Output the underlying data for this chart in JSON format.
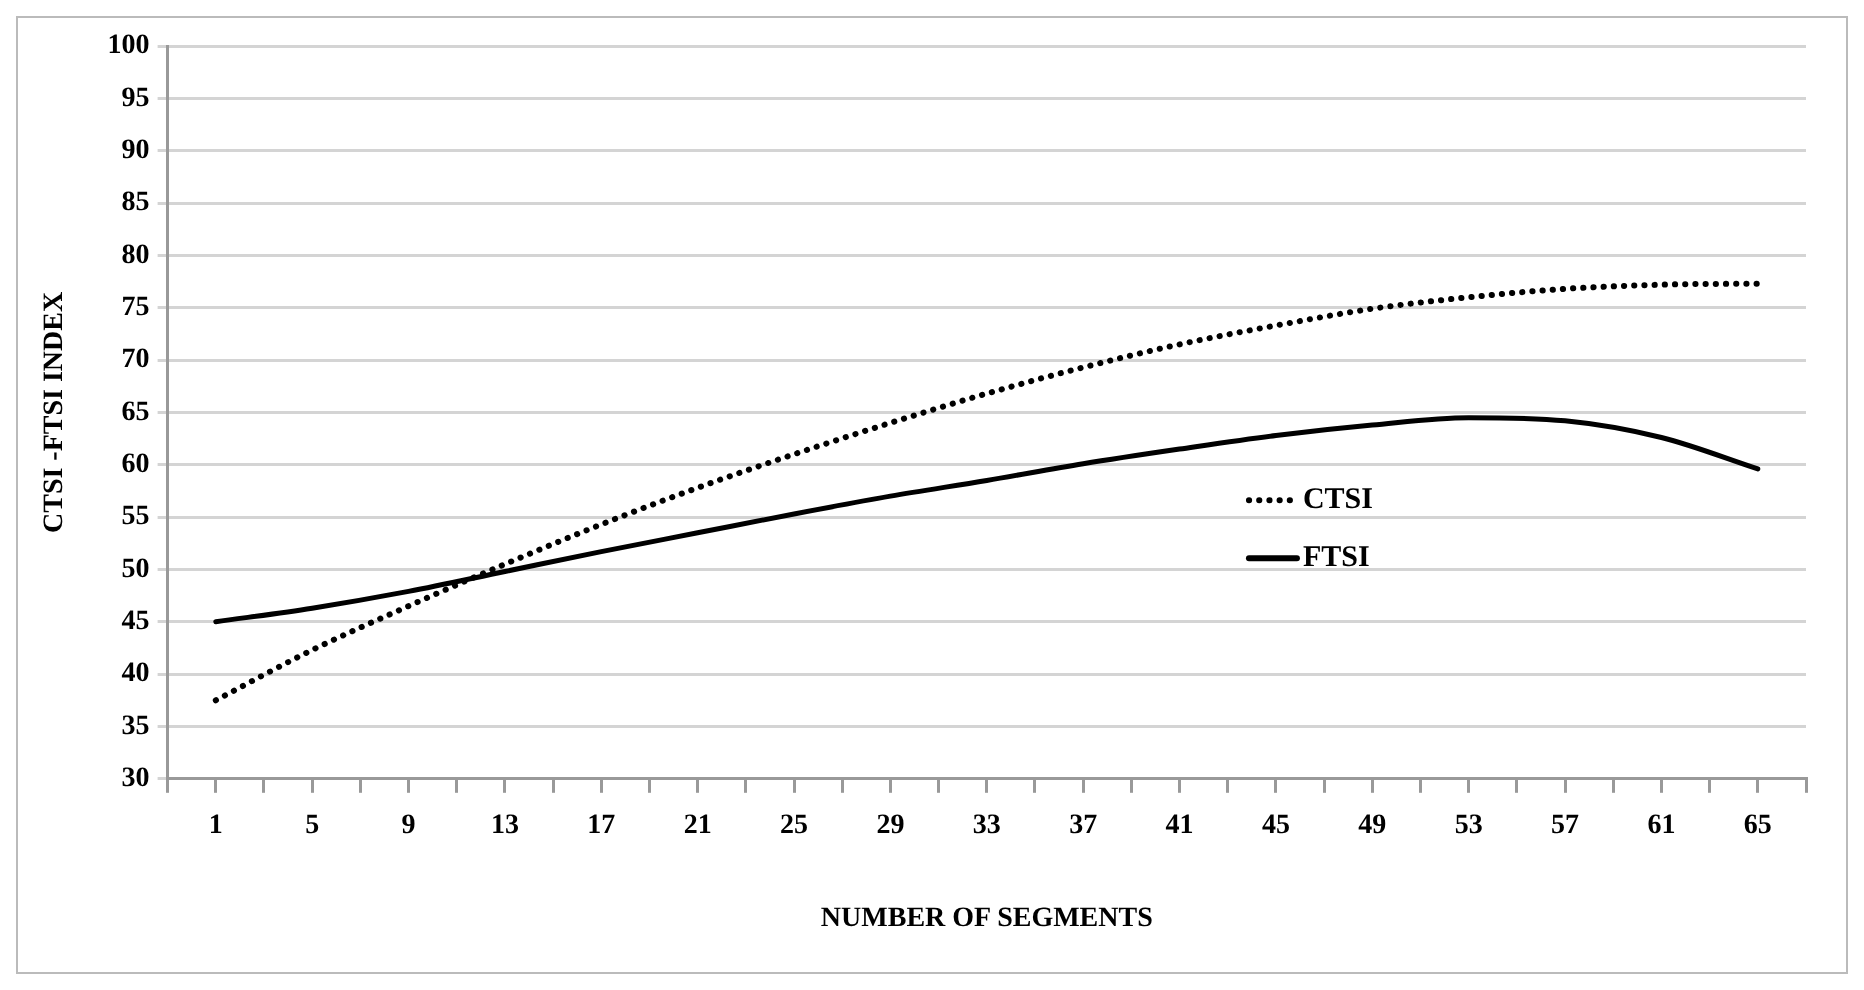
{
  "chart_data": {
    "type": "line",
    "xlabel": "NUMBER OF SEGMENTS",
    "ylabel": "CTSI -FTSI INDEX",
    "x": [
      1,
      5,
      9,
      13,
      17,
      21,
      25,
      29,
      33,
      37,
      41,
      45,
      49,
      53,
      57,
      61,
      65
    ],
    "series": [
      {
        "name": "CTSI",
        "color": "#000000",
        "line_style": "dotted",
        "values": [
          37.5,
          42.3,
          46.5,
          50.5,
          54.3,
          57.8,
          61,
          64,
          66.8,
          69.3,
          71.5,
          73.3,
          74.9,
          76,
          76.8,
          77.2,
          77.3
        ]
      },
      {
        "name": "FTSI",
        "color": "#000000",
        "line_style": "solid",
        "values": [
          45,
          46.3,
          47.9,
          49.8,
          51.7,
          53.5,
          55.3,
          57,
          58.5,
          60.1,
          61.5,
          62.8,
          63.8,
          64.5,
          64.2,
          62.6,
          59.6
        ]
      }
    ],
    "xlim": [
      -1,
      67
    ],
    "xticks": [
      {
        "value": -1,
        "label": null
      },
      {
        "value": 1,
        "label": "1"
      },
      {
        "value": 3,
        "label": null
      },
      {
        "value": 5,
        "label": "5"
      },
      {
        "value": 7,
        "label": null
      },
      {
        "value": 9,
        "label": "9"
      },
      {
        "value": 11,
        "label": null
      },
      {
        "value": 13,
        "label": "13"
      },
      {
        "value": 15,
        "label": null
      },
      {
        "value": 17,
        "label": "17"
      },
      {
        "value": 19,
        "label": null
      },
      {
        "value": 21,
        "label": "21"
      },
      {
        "value": 23,
        "label": null
      },
      {
        "value": 25,
        "label": "25"
      },
      {
        "value": 27,
        "label": null
      },
      {
        "value": 29,
        "label": "29"
      },
      {
        "value": 31,
        "label": null
      },
      {
        "value": 33,
        "label": "33"
      },
      {
        "value": 35,
        "label": null
      },
      {
        "value": 37,
        "label": "37"
      },
      {
        "value": 39,
        "label": null
      },
      {
        "value": 41,
        "label": "41"
      },
      {
        "value": 43,
        "label": null
      },
      {
        "value": 45,
        "label": "45"
      },
      {
        "value": 47,
        "label": null
      },
      {
        "value": 49,
        "label": "49"
      },
      {
        "value": 51,
        "label": null
      },
      {
        "value": 53,
        "label": "53"
      },
      {
        "value": 55,
        "label": null
      },
      {
        "value": 57,
        "label": "57"
      },
      {
        "value": 59,
        "label": null
      },
      {
        "value": 61,
        "label": "61"
      },
      {
        "value": 63,
        "label": null
      },
      {
        "value": 65,
        "label": "65"
      },
      {
        "value": 67,
        "label": null
      }
    ],
    "ylim": [
      30,
      100
    ],
    "yticks": [
      30,
      35,
      40,
      45,
      50,
      55,
      60,
      65,
      70,
      75,
      80,
      85,
      90,
      95,
      100
    ],
    "grid": "y",
    "legend": "right",
    "marker": "none"
  }
}
